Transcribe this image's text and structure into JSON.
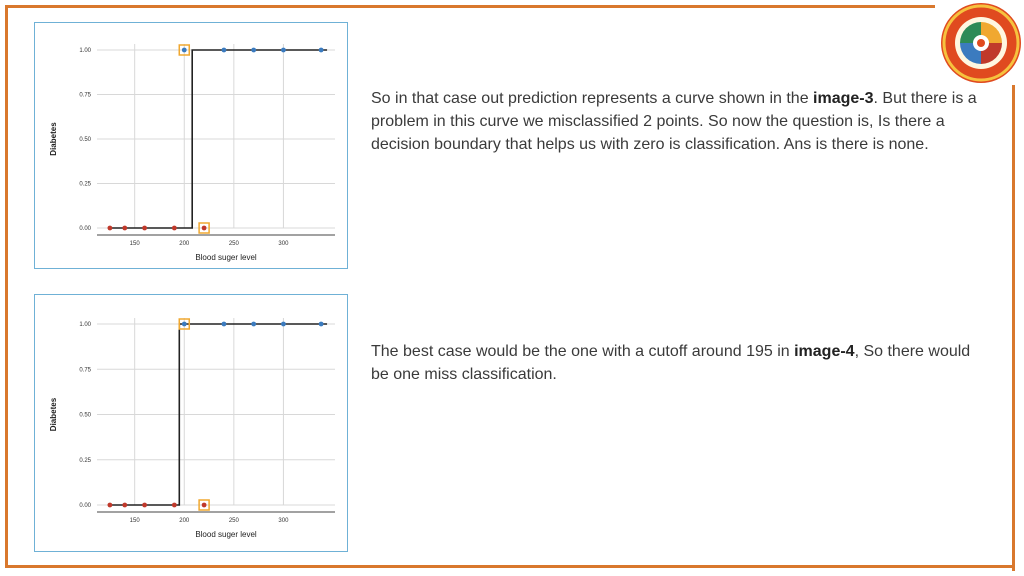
{
  "colors": {
    "accent": "#d9782d",
    "chart_border": "#6fb1d6",
    "positive": "#3b7bbf",
    "negative": "#c0392b",
    "highlight": "#f0a830"
  },
  "text1": {
    "pre": "So in that case out prediction represents a curve shown in the ",
    "bold": "image-3",
    "post": ". But there is a problem in this curve we misclassified 2 points. So now the question is, Is there a decision boundary that helps us with zero is classification. Ans is there is none."
  },
  "text2": {
    "pre": "The best case would be the one with a cutoff around 195 in ",
    "bold": "image-4",
    "post": ", So there would be one miss classification."
  },
  "chart_data": [
    {
      "type": "scatter",
      "xlabel": "Blood suger level",
      "ylabel": "Diabetes",
      "xlim": [
        112,
        352
      ],
      "ylim": [
        0,
        1
      ],
      "xticks": [
        150,
        200,
        250,
        300
      ],
      "yticks": [
        "0.00",
        "0.25",
        "0.50",
        "0.75",
        "1.00"
      ],
      "grid": true,
      "cutoff": 208,
      "points": [
        {
          "x": 125,
          "y": 0,
          "class": "negative"
        },
        {
          "x": 140,
          "y": 0,
          "class": "negative"
        },
        {
          "x": 160,
          "y": 0,
          "class": "negative"
        },
        {
          "x": 190,
          "y": 0,
          "class": "negative"
        },
        {
          "x": 220,
          "y": 0,
          "class": "negative",
          "highlight": true
        },
        {
          "x": 200,
          "y": 1,
          "class": "positive",
          "highlight": true
        },
        {
          "x": 240,
          "y": 1,
          "class": "positive"
        },
        {
          "x": 270,
          "y": 1,
          "class": "positive"
        },
        {
          "x": 300,
          "y": 1,
          "class": "positive"
        },
        {
          "x": 338,
          "y": 1,
          "class": "positive"
        }
      ]
    },
    {
      "type": "scatter",
      "xlabel": "Blood suger level",
      "ylabel": "Diabetes",
      "xlim": [
        112,
        352
      ],
      "ylim": [
        0,
        1
      ],
      "xticks": [
        150,
        200,
        250,
        300
      ],
      "yticks": [
        "0.00",
        "0.25",
        "0.50",
        "0.75",
        "1.00"
      ],
      "grid": true,
      "cutoff": 195,
      "points": [
        {
          "x": 125,
          "y": 0,
          "class": "negative"
        },
        {
          "x": 140,
          "y": 0,
          "class": "negative"
        },
        {
          "x": 160,
          "y": 0,
          "class": "negative"
        },
        {
          "x": 190,
          "y": 0,
          "class": "negative"
        },
        {
          "x": 220,
          "y": 0,
          "class": "negative",
          "highlight": true
        },
        {
          "x": 200,
          "y": 1,
          "class": "positive",
          "highlight": true
        },
        {
          "x": 240,
          "y": 1,
          "class": "positive"
        },
        {
          "x": 270,
          "y": 1,
          "class": "positive"
        },
        {
          "x": 300,
          "y": 1,
          "class": "positive"
        },
        {
          "x": 338,
          "y": 1,
          "class": "positive"
        }
      ]
    }
  ]
}
